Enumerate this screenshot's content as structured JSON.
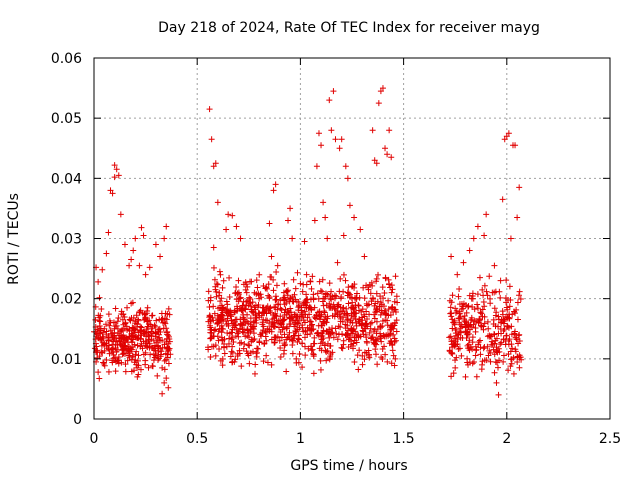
{
  "chart_data": {
    "type": "scatter",
    "title": "Day 218 of 2024, Rate Of TEC Index for receiver mayg",
    "xlabel": "GPS time / hours",
    "ylabel": "ROTI / TECUs",
    "xlim": [
      0,
      2.5
    ],
    "ylim": [
      0,
      0.06
    ],
    "xticks": [
      0,
      0.5,
      1,
      1.5,
      2,
      2.5
    ],
    "xtick_labels": [
      "0",
      "0.5",
      "1",
      "1.5",
      "2",
      "2.5"
    ],
    "yticks": [
      0,
      0.01,
      0.02,
      0.03,
      0.04,
      0.05,
      0.06
    ],
    "ytick_labels": [
      "0",
      "0.01",
      "0.02",
      "0.03",
      "0.04",
      "0.05",
      "0.06"
    ],
    "grid": true,
    "marker": "+",
    "color": "#e00000",
    "segments": [
      {
        "name": "segment-1",
        "x_range": [
          0.0,
          0.36
        ],
        "points": [
          [
            0.0,
            0.0145
          ],
          [
            0.01,
            0.0095
          ],
          [
            0.01,
            0.0252
          ],
          [
            0.02,
            0.0228
          ],
          [
            0.02,
            0.0078
          ],
          [
            0.03,
            0.0135
          ],
          [
            0.03,
            0.0162
          ],
          [
            0.04,
            0.0248
          ],
          [
            0.04,
            0.011
          ],
          [
            0.05,
            0.0125
          ],
          [
            0.05,
            0.015
          ],
          [
            0.06,
            0.0275
          ],
          [
            0.06,
            0.0098
          ],
          [
            0.07,
            0.0138
          ],
          [
            0.07,
            0.031
          ],
          [
            0.08,
            0.038
          ],
          [
            0.08,
            0.016
          ],
          [
            0.09,
            0.0375
          ],
          [
            0.09,
            0.0115
          ],
          [
            0.1,
            0.0402
          ],
          [
            0.1,
            0.0422
          ],
          [
            0.11,
            0.0415
          ],
          [
            0.11,
            0.013
          ],
          [
            0.12,
            0.0405
          ],
          [
            0.12,
            0.0092
          ],
          [
            0.13,
            0.0145
          ],
          [
            0.13,
            0.034
          ],
          [
            0.14,
            0.0125
          ],
          [
            0.14,
            0.0165
          ],
          [
            0.15,
            0.029
          ],
          [
            0.15,
            0.0108
          ],
          [
            0.16,
            0.0185
          ],
          [
            0.16,
            0.0148
          ],
          [
            0.17,
            0.0255
          ],
          [
            0.17,
            0.012
          ],
          [
            0.18,
            0.0265
          ],
          [
            0.18,
            0.0192
          ],
          [
            0.19,
            0.028
          ],
          [
            0.19,
            0.0138
          ],
          [
            0.2,
            0.0098
          ],
          [
            0.2,
            0.03
          ],
          [
            0.21,
            0.0158
          ],
          [
            0.21,
            0.007
          ],
          [
            0.22,
            0.0178
          ],
          [
            0.22,
            0.0255
          ],
          [
            0.23,
            0.0318
          ],
          [
            0.23,
            0.0125
          ],
          [
            0.24,
            0.0305
          ],
          [
            0.24,
            0.0145
          ],
          [
            0.25,
            0.024
          ],
          [
            0.25,
            0.011
          ],
          [
            0.26,
            0.0162
          ],
          [
            0.26,
            0.0185
          ],
          [
            0.27,
            0.0125
          ],
          [
            0.27,
            0.0252
          ],
          [
            0.28,
            0.0118
          ],
          [
            0.28,
            0.015
          ],
          [
            0.29,
            0.0108
          ],
          [
            0.29,
            0.013
          ],
          [
            0.3,
            0.0142
          ],
          [
            0.3,
            0.029
          ],
          [
            0.31,
            0.0118
          ],
          [
            0.31,
            0.0098
          ],
          [
            0.32,
            0.013
          ],
          [
            0.32,
            0.027
          ],
          [
            0.33,
            0.0085
          ],
          [
            0.33,
            0.0042
          ],
          [
            0.34,
            0.006
          ],
          [
            0.34,
            0.03
          ],
          [
            0.35,
            0.032
          ],
          [
            0.35,
            0.0068
          ],
          [
            0.36,
            0.0052
          ],
          [
            0.36,
            0.0125
          ]
        ]
      },
      {
        "name": "segment-2",
        "x_range": [
          0.55,
          1.46
        ],
        "points": [
          [
            0.56,
            0.0515
          ],
          [
            0.57,
            0.0465
          ],
          [
            0.57,
            0.0135
          ],
          [
            0.58,
            0.042
          ],
          [
            0.58,
            0.0285
          ],
          [
            0.59,
            0.0425
          ],
          [
            0.59,
            0.0105
          ],
          [
            0.6,
            0.036
          ],
          [
            0.6,
            0.016
          ],
          [
            0.61,
            0.0245
          ],
          [
            0.62,
            0.015
          ],
          [
            0.63,
            0.012
          ],
          [
            0.64,
            0.0315
          ],
          [
            0.65,
            0.034
          ],
          [
            0.66,
            0.018
          ],
          [
            0.67,
            0.0338
          ],
          [
            0.68,
            0.0095
          ],
          [
            0.69,
            0.032
          ],
          [
            0.7,
            0.023
          ],
          [
            0.71,
            0.03
          ],
          [
            0.72,
            0.0145
          ],
          [
            0.74,
            0.021
          ],
          [
            0.76,
            0.011
          ],
          [
            0.78,
            0.0075
          ],
          [
            0.8,
            0.02
          ],
          [
            0.82,
            0.0165
          ],
          [
            0.84,
            0.015
          ],
          [
            0.85,
            0.0325
          ],
          [
            0.86,
            0.027
          ],
          [
            0.87,
            0.038
          ],
          [
            0.88,
            0.039
          ],
          [
            0.89,
            0.0255
          ],
          [
            0.9,
            0.013
          ],
          [
            0.92,
            0.021
          ],
          [
            0.94,
            0.033
          ],
          [
            0.95,
            0.035
          ],
          [
            0.96,
            0.03
          ],
          [
            0.98,
            0.01
          ],
          [
            1.0,
            0.0225
          ],
          [
            1.02,
            0.0295
          ],
          [
            1.03,
            0.024
          ],
          [
            1.05,
            0.0185
          ],
          [
            1.07,
            0.033
          ],
          [
            1.08,
            0.042
          ],
          [
            1.09,
            0.0475
          ],
          [
            1.1,
            0.0455
          ],
          [
            1.11,
            0.036
          ],
          [
            1.12,
            0.0335
          ],
          [
            1.13,
            0.03
          ],
          [
            1.14,
            0.053
          ],
          [
            1.15,
            0.048
          ],
          [
            1.16,
            0.0545
          ],
          [
            1.17,
            0.0465
          ],
          [
            1.18,
            0.026
          ],
          [
            1.19,
            0.045
          ],
          [
            1.2,
            0.0465
          ],
          [
            1.21,
            0.0305
          ],
          [
            1.22,
            0.042
          ],
          [
            1.23,
            0.04
          ],
          [
            1.24,
            0.0355
          ],
          [
            1.25,
            0.022
          ],
          [
            1.26,
            0.0335
          ],
          [
            1.27,
            0.016
          ],
          [
            1.29,
            0.0315
          ],
          [
            1.3,
            0.0105
          ],
          [
            1.31,
            0.027
          ],
          [
            1.33,
            0.0215
          ],
          [
            1.35,
            0.048
          ],
          [
            1.36,
            0.043
          ],
          [
            1.37,
            0.0425
          ],
          [
            1.38,
            0.0525
          ],
          [
            1.39,
            0.0545
          ],
          [
            1.4,
            0.055
          ],
          [
            1.41,
            0.045
          ],
          [
            1.42,
            0.044
          ],
          [
            1.43,
            0.048
          ],
          [
            1.44,
            0.0435
          ],
          [
            1.45,
            0.015
          ],
          [
            1.46,
            0.01
          ]
        ]
      },
      {
        "name": "segment-3",
        "x_range": [
          1.72,
          2.07
        ],
        "points": [
          [
            1.73,
            0.027
          ],
          [
            1.74,
            0.013
          ],
          [
            1.75,
            0.0085
          ],
          [
            1.76,
            0.024
          ],
          [
            1.77,
            0.016
          ],
          [
            1.78,
            0.0105
          ],
          [
            1.79,
            0.026
          ],
          [
            1.8,
            0.007
          ],
          [
            1.81,
            0.014
          ],
          [
            1.82,
            0.028
          ],
          [
            1.83,
            0.02
          ],
          [
            1.84,
            0.03
          ],
          [
            1.85,
            0.012
          ],
          [
            1.86,
            0.032
          ],
          [
            1.87,
            0.0235
          ],
          [
            1.88,
            0.009
          ],
          [
            1.89,
            0.0305
          ],
          [
            1.9,
            0.034
          ],
          [
            1.91,
            0.015
          ],
          [
            1.92,
            0.011
          ],
          [
            1.93,
            0.021
          ],
          [
            1.94,
            0.0255
          ],
          [
            1.95,
            0.006
          ],
          [
            1.96,
            0.004
          ],
          [
            1.97,
            0.023
          ],
          [
            1.98,
            0.0365
          ],
          [
            1.99,
            0.0465
          ],
          [
            2.0,
            0.047
          ],
          [
            2.01,
            0.0475
          ],
          [
            2.02,
            0.03
          ],
          [
            2.03,
            0.0455
          ],
          [
            2.04,
            0.0455
          ],
          [
            2.05,
            0.0335
          ],
          [
            2.06,
            0.0385
          ],
          [
            2.06,
            0.014
          ]
        ]
      }
    ],
    "bands": [
      {
        "name": "band-1",
        "x_range": [
          0.0,
          0.37
        ],
        "y_range": [
          0.006,
          0.0205
        ],
        "count": 360,
        "seed": 11
      },
      {
        "name": "band-2",
        "x_range": [
          0.55,
          1.47
        ],
        "y_range": [
          0.0065,
          0.0265
        ],
        "count": 980,
        "seed": 23
      },
      {
        "name": "band-3",
        "x_range": [
          1.72,
          2.07
        ],
        "y_range": [
          0.0045,
          0.0245
        ],
        "count": 300,
        "seed": 37
      }
    ]
  }
}
